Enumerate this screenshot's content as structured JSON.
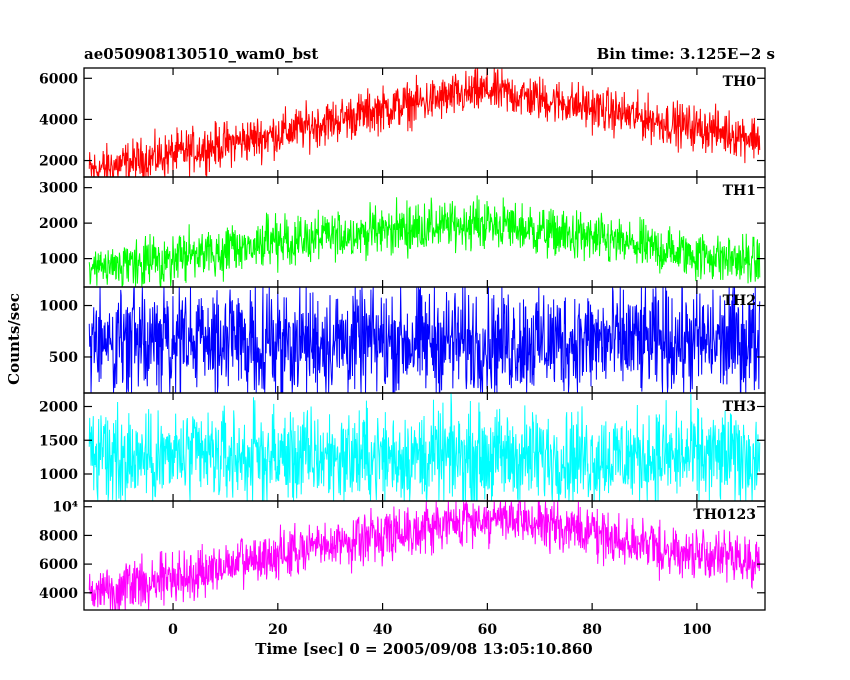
{
  "header": {
    "left_title": "ae050908130510_wam0_bst",
    "right_title": "Bin time: 3.125E−2 s"
  },
  "chart_data": {
    "type": "line",
    "xlabel": "Time [sec] 0 = 2005/09/08 13:05:10.860",
    "ylabel": "Counts/sec",
    "xlim": [
      -17,
      113
    ],
    "x_tick_values": [
      0,
      20,
      40,
      60,
      80,
      100
    ],
    "x_tick_labels": [
      "0",
      "20",
      "40",
      "60",
      "80",
      "100"
    ],
    "x_start": -16,
    "x_end": 112,
    "bin_time": 0.03125,
    "panels": [
      {
        "name": "TH0",
        "color": "#ff0000",
        "ylim": [
          1200,
          6500
        ],
        "yticks": [
          2000,
          4000,
          6000
        ],
        "yticklabels": [
          "2000",
          "4000",
          "6000"
        ],
        "trend": [
          [
            -16,
            1500
          ],
          [
            0,
            2300
          ],
          [
            20,
            3300
          ],
          [
            40,
            4500
          ],
          [
            60,
            5400
          ],
          [
            75,
            4800
          ],
          [
            95,
            3800
          ],
          [
            112,
            3100
          ]
        ],
        "amplitude": 850
      },
      {
        "name": "TH1",
        "color": "#00ff00",
        "ylim": [
          200,
          3300
        ],
        "yticks": [
          1000,
          2000,
          3000
        ],
        "yticklabels": [
          "1000",
          "2000",
          "3000"
        ],
        "trend": [
          [
            -16,
            600
          ],
          [
            0,
            1000
          ],
          [
            20,
            1450
          ],
          [
            40,
            1800
          ],
          [
            60,
            2000
          ],
          [
            80,
            1550
          ],
          [
            100,
            1100
          ],
          [
            112,
            900
          ]
        ],
        "amplitude": 550
      },
      {
        "name": "TH2",
        "color": "#0000ff",
        "ylim": [
          150,
          1180
        ],
        "yticks": [
          500,
          1000
        ],
        "yticklabels": [
          "500",
          "1000"
        ],
        "trend": [
          [
            -16,
            650
          ],
          [
            112,
            650
          ]
        ],
        "amplitude": 420
      },
      {
        "name": "TH3",
        "color": "#00ffff",
        "ylim": [
          600,
          2200
        ],
        "yticks": [
          1000,
          1500,
          2000
        ],
        "yticklabels": [
          "1000",
          "1500",
          "2000"
        ],
        "trend": [
          [
            -16,
            1250
          ],
          [
            112,
            1250
          ]
        ],
        "amplitude": 560
      },
      {
        "name": "TH0123",
        "color": "#ff00ff",
        "ylim": [
          2800,
          10400
        ],
        "yticks": [
          4000,
          6000,
          8000,
          10000
        ],
        "yticklabels": [
          "4000",
          "6000",
          "8000",
          "10⁴"
        ],
        "trend": [
          [
            -16,
            4000
          ],
          [
            0,
            5000
          ],
          [
            20,
            6600
          ],
          [
            40,
            8100
          ],
          [
            60,
            9200
          ],
          [
            75,
            8600
          ],
          [
            95,
            6900
          ],
          [
            112,
            6200
          ]
        ],
        "amplitude": 1400
      }
    ]
  }
}
